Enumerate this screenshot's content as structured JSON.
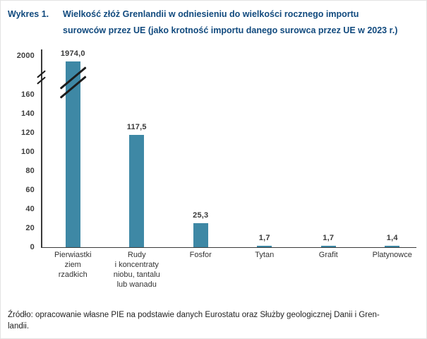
{
  "header": {
    "label": "Wykres 1.",
    "title_line1": "Wielkość złóż Grenlandii w odniesieniu do wielkości rocznego importu",
    "title_line2": "surowców przez UE (jako krotność importu danego surowca przez UE w 2023 r.)"
  },
  "chart_data": {
    "type": "bar",
    "title": "Wykres 1. Wielkość złóż Grenlandii w odniesieniu do wielkości rocznego importu surowców przez UE (jako krotność importu danego surowca przez UE w 2023 r.)",
    "categories": [
      "Pierwiastki\nziem\nrzadkich",
      "Rudy\ni koncentraty\nniobu, tantalu\nlub wanadu",
      "Fosfor",
      "Tytan",
      "Grafit",
      "Platynowce"
    ],
    "values": [
      1974.0,
      117.5,
      25.3,
      1.7,
      1.7,
      1.4
    ],
    "value_labels": [
      "1974,0",
      "117,5",
      "25,3",
      "1,7",
      "1,7",
      "1,4"
    ],
    "yticks": [
      0,
      20,
      40,
      60,
      80,
      100,
      120,
      140,
      160
    ],
    "axis_break": {
      "lower_max": 160,
      "upper_tick": 2000,
      "upper_tick_label": "2000"
    },
    "xlabel": "",
    "ylabel": "",
    "grid": false,
    "legend": "none",
    "bar_color": "#3E88A5"
  },
  "footer": {
    "source_line1": "Źródło: opracowanie własne PIE na podstawie danych Eurostatu oraz Służby geologicznej Danii i Gren-",
    "source_line2": "landii."
  },
  "colors": {
    "bar": "#3E88A5",
    "title": "#114A7E",
    "axis": "#3A3A3A",
    "text": "#333333"
  }
}
